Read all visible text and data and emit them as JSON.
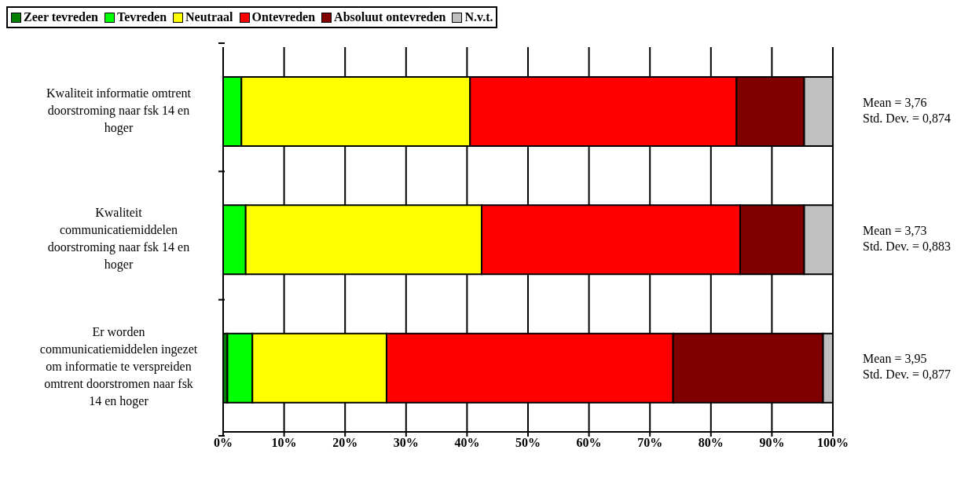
{
  "chart_data": {
    "type": "bar",
    "orientation": "horizontal",
    "stacked": true,
    "categories": [
      "Kwaliteit informatie omtrent doorstroming naar fsk 14 en hoger",
      "Kwaliteit communicatiemiddelen doorstroming naar fsk 14 en hoger",
      "Er worden communicatiemiddelen ingezet om informatie te verspreiden omtrent doorstromen naar fsk 14 en hoger"
    ],
    "series": [
      {
        "name": "Zeer tevreden",
        "color": "#008000",
        "values": [
          0,
          0,
          0.7
        ]
      },
      {
        "name": "Tevreden",
        "color": "#00ff00",
        "values": [
          3.0,
          3.7,
          4.1
        ]
      },
      {
        "name": "Neutraal",
        "color": "#ffff00",
        "values": [
          37.5,
          38.7,
          22.0
        ]
      },
      {
        "name": "Ontevreden",
        "color": "#ff0000",
        "values": [
          43.7,
          42.4,
          47.0
        ]
      },
      {
        "name": "Absoluut ontevreden",
        "color": "#800000",
        "values": [
          11.1,
          10.5,
          24.6
        ]
      },
      {
        "name": "N.v.t.",
        "color": "#c0c0c0",
        "values": [
          4.7,
          4.7,
          1.6
        ]
      }
    ],
    "xlim": [
      0,
      100
    ],
    "xticks": [
      {
        "value": 0,
        "label": "0%"
      },
      {
        "value": 10,
        "label": "10%"
      },
      {
        "value": 20,
        "label": "20%"
      },
      {
        "value": 30,
        "label": "30%"
      },
      {
        "value": 40,
        "label": "40%"
      },
      {
        "value": 50,
        "label": "50%"
      },
      {
        "value": 60,
        "label": "60%"
      },
      {
        "value": 70,
        "label": "70%"
      },
      {
        "value": 80,
        "label": "80%"
      },
      {
        "value": 90,
        "label": "90%"
      },
      {
        "value": 100,
        "label": "100%"
      }
    ],
    "grid": "x",
    "legend": "top left",
    "annotations": [
      "Mean = 3,76\nStd. Dev. = 0,874",
      "Mean = 3,73\nStd. Dev. = 0,883",
      "Mean = 3,95\nStd. Dev. = 0,877"
    ]
  }
}
